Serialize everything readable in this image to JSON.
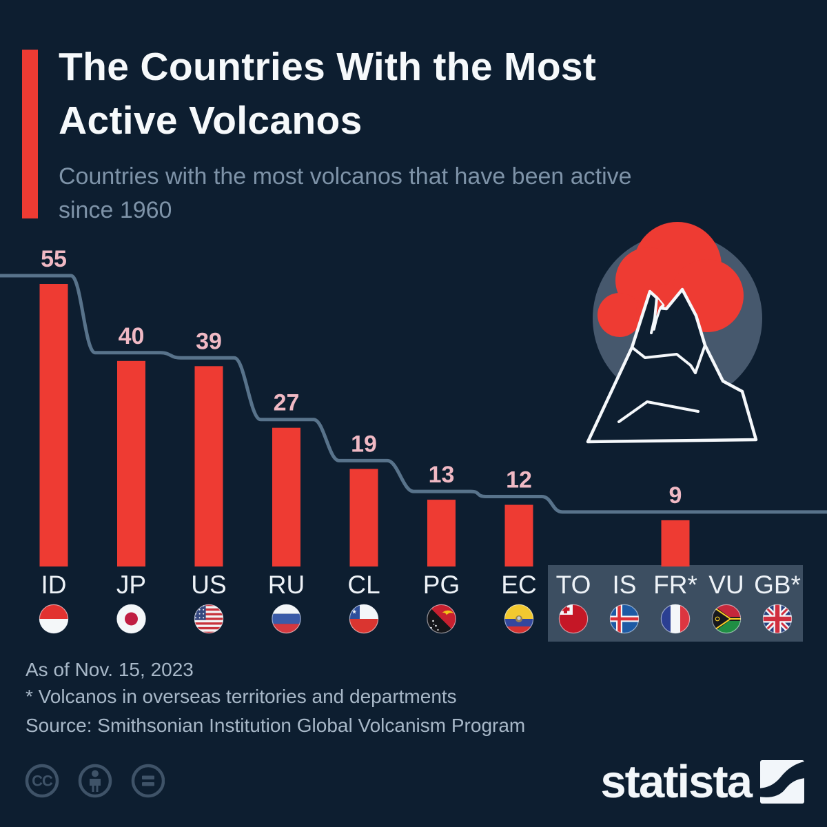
{
  "header": {
    "title_line1": "The Countries With the Most",
    "title_line2": "Active Volcanos",
    "subtitle_line1": "Countries with the most volcanos that have been active",
    "subtitle_line2": "since 1960"
  },
  "chart_data": {
    "type": "bar",
    "title": "The Countries With the Most Active Volcanos",
    "subtitle": "Countries with the most volcanos that have been active since 1960",
    "categories": [
      "ID",
      "JP",
      "US",
      "RU",
      "CL",
      "PG",
      "EC",
      "TO",
      "IS",
      "FR*",
      "VU",
      "GB*"
    ],
    "values": [
      55,
      40,
      39,
      27,
      19,
      13,
      12,
      9,
      9,
      9,
      9,
      9
    ],
    "shown_value_labels": [
      55,
      40,
      39,
      27,
      19,
      13,
      12,
      9
    ],
    "tied_group": {
      "categories": [
        "TO",
        "IS",
        "FR*",
        "VU",
        "GB*"
      ],
      "value": 9
    },
    "flag_icons": [
      "flag-indonesia",
      "flag-japan",
      "flag-united-states",
      "flag-russia",
      "flag-chile",
      "flag-papua-new-guinea",
      "flag-ecuador",
      "flag-tonga",
      "flag-iceland",
      "flag-france",
      "flag-vanuatu",
      "flag-united-kingdom"
    ],
    "bar_color": "#ee3b33",
    "step_line": true,
    "legend": "none",
    "ylim": [
      0,
      55
    ],
    "grid": false
  },
  "footer": {
    "as_of": "As of Nov. 15, 2023",
    "note": "* Volcanos in overseas territories and departments",
    "source": "Source: Smithsonian Institution Global Volcanism Program"
  },
  "branding": {
    "logo_text": "statista",
    "license_icons": [
      "cc-icon",
      "cc-by-person-icon",
      "cc-nd-equals-icon"
    ]
  },
  "colors": {
    "background": "#0d1e30",
    "accent_red": "#ee3b33",
    "step_line": "#5d7890",
    "value_label": "#f0b9c4",
    "country_label": "#edf2f7",
    "subtitle_text": "#7e93a8",
    "footer_text": "#a8b8c8",
    "tied_box": "#3c4e61",
    "illustration_circle": "#46586d",
    "cc_icon": "#3f5368"
  }
}
